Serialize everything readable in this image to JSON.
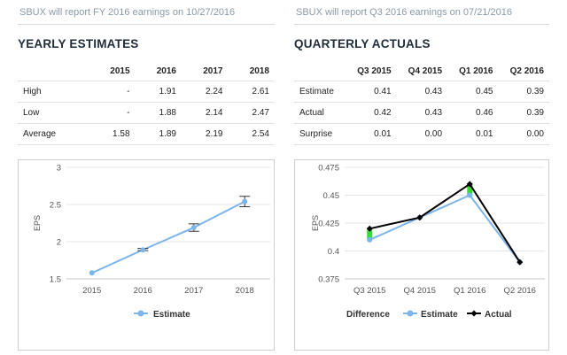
{
  "yearly": {
    "report_note": "SBUX will report FY 2016 earnings on 10/27/2016",
    "title": "YEARLY ESTIMATES",
    "columns": [
      "",
      "2015",
      "2016",
      "2017",
      "2018"
    ],
    "rows": [
      [
        "High",
        "-",
        "1.91",
        "2.24",
        "2.61"
      ],
      [
        "Low",
        "-",
        "1.88",
        "2.14",
        "2.47"
      ],
      [
        "Average",
        "1.58",
        "1.89",
        "2.19",
        "2.54"
      ]
    ]
  },
  "quarterly": {
    "report_note": "SBUX will report Q3 2016 earnings on 07/21/2016",
    "title": "QUARTERLY ACTUALS",
    "columns": [
      "",
      "Q3 2015",
      "Q4 2015",
      "Q1 2016",
      "Q2 2016"
    ],
    "rows": [
      [
        "Estimate",
        "0.41",
        "0.43",
        "0.45",
        "0.39"
      ],
      [
        "Actual",
        "0.42",
        "0.43",
        "0.46",
        "0.39"
      ],
      [
        "Surprise",
        "0.01",
        "0.00",
        "0.01",
        "0.00"
      ]
    ]
  },
  "colors": {
    "estimate": "#7cb5ec",
    "actual": "#000000",
    "difference": "#33dd33",
    "grid": "#e6e6e6",
    "errorbar": "#333333"
  },
  "chart_data": [
    {
      "type": "line",
      "ylabel": "EPS",
      "categories": [
        "2015",
        "2016",
        "2017",
        "2018"
      ],
      "ylim": [
        1.5,
        3
      ],
      "yticks": [
        "1.5",
        "2",
        "2.5",
        "3"
      ],
      "grid": true,
      "legend": "bottom",
      "series": [
        {
          "name": "Estimate",
          "values": [
            1.58,
            1.89,
            2.19,
            2.54
          ]
        }
      ],
      "error_bars": [
        null,
        [
          1.88,
          1.91
        ],
        [
          2.14,
          2.24
        ],
        [
          2.47,
          2.61
        ]
      ]
    },
    {
      "type": "line",
      "ylabel": "EPS",
      "categories": [
        "Q3 2015",
        "Q4 2015",
        "Q1 2016",
        "Q2 2016"
      ],
      "ylim": [
        0.375,
        0.475
      ],
      "yticks": [
        "0.375",
        "0.4",
        "0.425",
        "0.45",
        "0.475"
      ],
      "grid": true,
      "legend": "bottom",
      "series": [
        {
          "name": "Estimate",
          "values": [
            0.41,
            0.43,
            0.45,
            0.39
          ]
        },
        {
          "name": "Actual",
          "values": [
            0.42,
            0.43,
            0.46,
            0.39
          ]
        }
      ],
      "difference_label": "Difference"
    }
  ]
}
